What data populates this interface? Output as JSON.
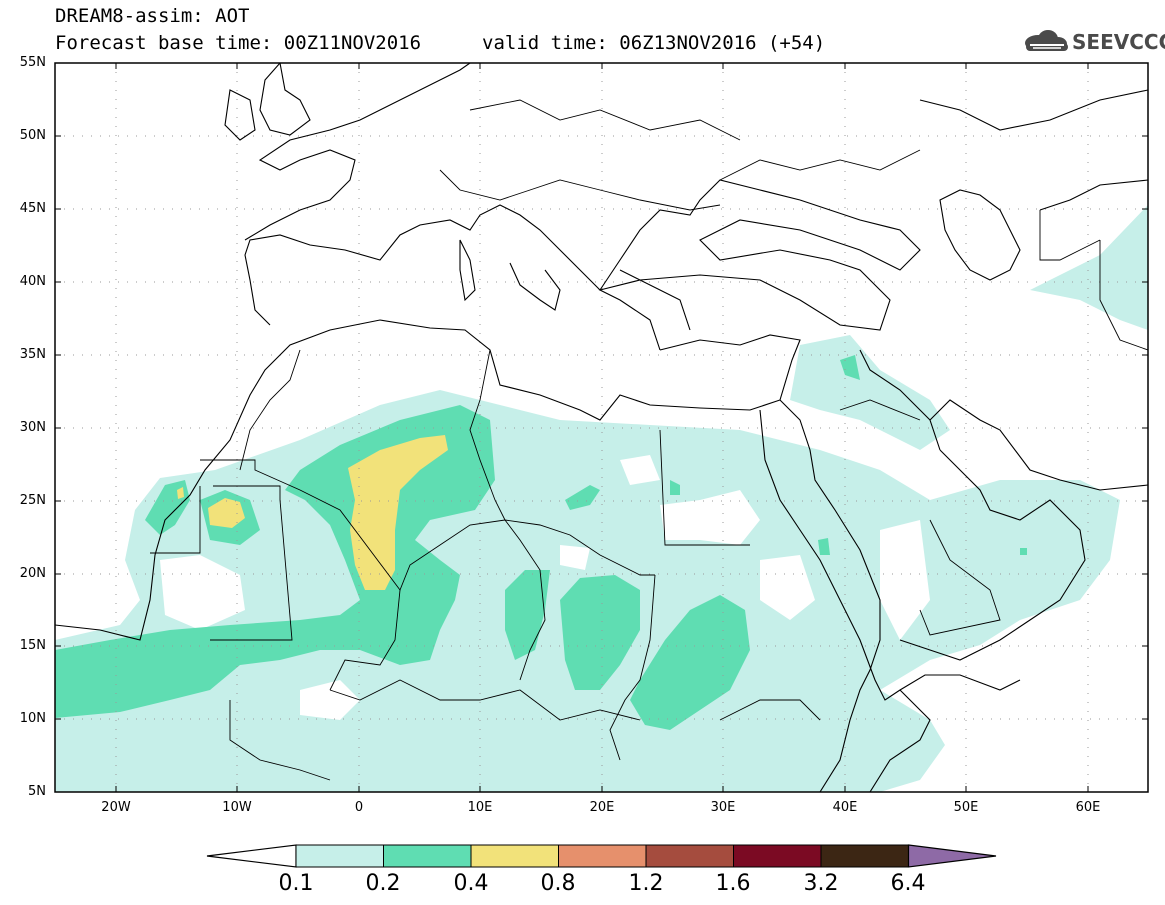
{
  "header": {
    "title_line1": "DREAM8-assim: AOT",
    "base_time": "Forecast base time: 00Z11NOV2016",
    "valid_time": "valid time: 06Z13NOV2016 (+54)",
    "logo_text": "SEEVCCC"
  },
  "map": {
    "lat_labels": [
      "55N",
      "50N",
      "45N",
      "40N",
      "35N",
      "30N",
      "25N",
      "20N",
      "15N",
      "10N",
      "5N"
    ],
    "lon_labels": [
      "20W",
      "10W",
      "0",
      "10E",
      "20E",
      "30E",
      "40E",
      "50E",
      "60E"
    ],
    "lat_range": [
      5,
      55
    ],
    "lon_range": [
      -25,
      65
    ],
    "field": "AOT"
  },
  "colorbar": {
    "labels": [
      "0.1",
      "0.2",
      "0.4",
      "0.8",
      "1.2",
      "1.6",
      "3.2",
      "6.4"
    ],
    "colors": [
      "#ffffff",
      "#c6efe9",
      "#5fddb2",
      "#f2e27a",
      "#e6906c",
      "#a54c3e",
      "#7b0a23",
      "#3c2614",
      "#8e6aa6"
    ]
  }
}
